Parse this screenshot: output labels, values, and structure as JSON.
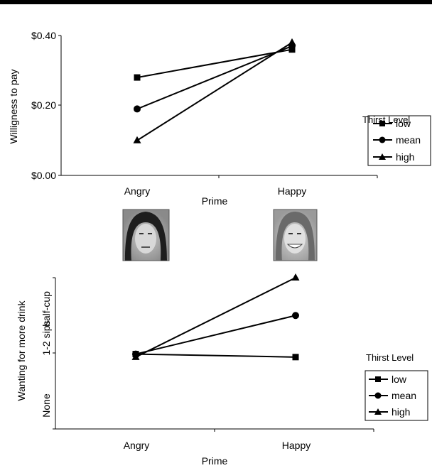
{
  "chart_data": [
    {
      "type": "line",
      "categories": [
        "Angry",
        "Happy"
      ],
      "xlabel": "Prime",
      "ylabel": "Willigness to pay",
      "ylim": [
        0,
        0.4
      ],
      "y_tick_labels": [
        "$0.00",
        "$0.20",
        "$0.40"
      ],
      "legend_title": "Thirst Level",
      "legend_position": "right",
      "series": [
        {
          "name": "low",
          "marker": "square",
          "values": [
            0.28,
            0.36
          ]
        },
        {
          "name": "mean",
          "marker": "circle",
          "values": [
            0.19,
            0.37
          ]
        },
        {
          "name": "high",
          "marker": "triangle",
          "values": [
            0.1,
            0.38
          ]
        }
      ]
    },
    {
      "type": "line",
      "categories": [
        "Angry",
        "Happy"
      ],
      "xlabel": "Prime",
      "ylabel": "Wanting for more drink",
      "ylim": [
        0,
        2
      ],
      "y_tick_labels": [
        "None",
        "1-2 sips",
        "half-cup"
      ],
      "legend_title": "Thirst Level",
      "legend_position": "right",
      "series": [
        {
          "name": "low",
          "marker": "square",
          "values": [
            0.99,
            0.95
          ]
        },
        {
          "name": "mean",
          "marker": "circle",
          "values": [
            0.99,
            1.5
          ]
        },
        {
          "name": "high",
          "marker": "triangle",
          "values": [
            0.95,
            2.0
          ]
        }
      ]
    }
  ],
  "images": [
    {
      "name": "angry-face-photo"
    },
    {
      "name": "happy-face-photo"
    }
  ]
}
